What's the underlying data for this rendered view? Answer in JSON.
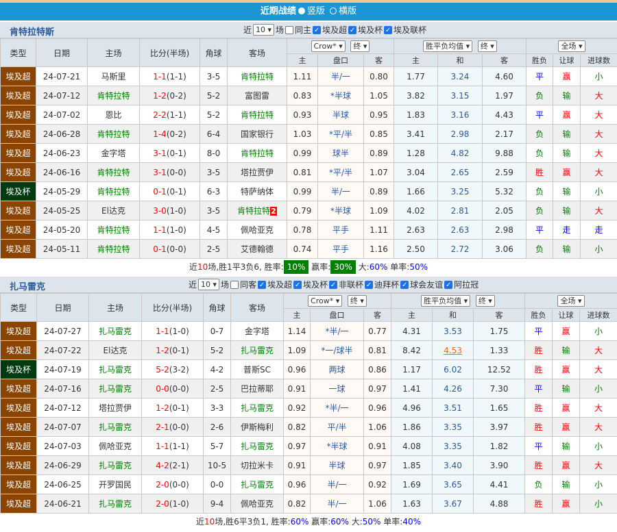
{
  "header": {
    "title": "近期战绩",
    "opt1": "竖版",
    "opt2": "横版"
  },
  "colors": {
    "header": "#1a96d4",
    "league": "#8b4500",
    "cup": "#003a10",
    "win": "#ff0000",
    "draw": "#0000ff",
    "loss": "#008000"
  },
  "columns": {
    "type": "类型",
    "date": "日期",
    "home": "主场",
    "score": "比分(半场)",
    "corner": "角球",
    "away": "客场",
    "h": "主",
    "line": "盘口",
    "a": "客",
    "h2": "主",
    "d": "和",
    "a2": "客",
    "res": "胜负",
    "hcp": "让球",
    "goals": "进球数"
  },
  "sections": [
    {
      "team": "肯特拉特斯",
      "near": "近",
      "count": "10",
      "unit": "场",
      "same": "同主",
      "filters": [
        "埃及超",
        "埃及杯",
        "埃及联杯"
      ],
      "company": "Crow*",
      "company_type": "终",
      "avg": "胜平负均值",
      "avg_type": "终",
      "scope": "全场",
      "rows": [
        [
          "埃及超",
          "24-07-21",
          "马斯里",
          "1-1",
          "(1-1)",
          "3-5",
          "肯特拉特",
          "1.11",
          "半/一",
          "0.80",
          "1.77",
          "3.24",
          "4.60",
          "平",
          "赢",
          "小",
          "a",
          ""
        ],
        [
          "埃及超",
          "24-07-12",
          "肯特拉特",
          "1-2",
          "(0-2)",
          "5-2",
          "富图雷",
          "0.83",
          "*半球",
          "1.05",
          "3.82",
          "3.15",
          "1.97",
          "负",
          "输",
          "大",
          "h",
          ""
        ],
        [
          "埃及超",
          "24-07-02",
          "恩比",
          "2-2",
          "(1-1)",
          "5-2",
          "肯特拉特",
          "0.93",
          "半球",
          "0.95",
          "1.83",
          "3.16",
          "4.43",
          "平",
          "赢",
          "大",
          "a",
          ""
        ],
        [
          "埃及超",
          "24-06-28",
          "肯特拉特",
          "1-4",
          "(0-2)",
          "6-4",
          "国家银行",
          "1.03",
          "*平/半",
          "0.85",
          "3.41",
          "2.98",
          "2.17",
          "负",
          "输",
          "大",
          "h",
          ""
        ],
        [
          "埃及超",
          "24-06-23",
          "金字塔",
          "3-1",
          "(0-1)",
          "8-0",
          "肯特拉特",
          "0.99",
          "球半",
          "0.89",
          "1.28",
          "4.82",
          "9.88",
          "负",
          "输",
          "大",
          "a",
          ""
        ],
        [
          "埃及超",
          "24-06-16",
          "肯特拉特",
          "3-1",
          "(0-0)",
          "3-5",
          "塔拉贾伊",
          "0.81",
          "*平/半",
          "1.07",
          "3.04",
          "2.65",
          "2.59",
          "胜",
          "赢",
          "大",
          "h",
          ""
        ],
        [
          "埃及杯",
          "24-05-29",
          "肯特拉特",
          "0-1",
          "(0-1)",
          "6-3",
          "特萨纳体",
          "0.99",
          "半/一",
          "0.89",
          "1.66",
          "3.25",
          "5.32",
          "负",
          "输",
          "小",
          "h",
          ""
        ],
        [
          "埃及超",
          "24-05-25",
          "El达克",
          "3-0",
          "(1-0)",
          "3-5",
          "肯特拉特",
          "0.79",
          "*半球",
          "1.09",
          "4.02",
          "2.81",
          "2.05",
          "负",
          "输",
          "大",
          "a",
          "2"
        ],
        [
          "埃及超",
          "24-05-20",
          "肯特拉特",
          "1-1",
          "(1-0)",
          "4-5",
          "佩哈亚克",
          "0.78",
          "平手",
          "1.11",
          "2.63",
          "2.63",
          "2.98",
          "平",
          "走",
          "走",
          "h",
          ""
        ],
        [
          "埃及超",
          "24-05-11",
          "肯特拉特",
          "0-1",
          "(0-0)",
          "2-5",
          "艾德翰德",
          "0.74",
          "平手",
          "1.16",
          "2.50",
          "2.72",
          "3.06",
          "负",
          "输",
          "小",
          "h",
          ""
        ]
      ],
      "summary": {
        "p1": "近",
        "n": "10",
        "p2": "场,胜1平3负6, 胜率:",
        "win": "10%",
        "p3": " 赢率:",
        "hcp": "30%",
        "p4": " 大:",
        "big": "60%",
        "p5": " 单率:",
        "odd": "50%"
      }
    },
    {
      "team": "扎马雷克",
      "near": "近",
      "count": "10",
      "unit": "场",
      "same": "同客",
      "filters": [
        "埃及超",
        "埃及杯",
        "非联杯",
        "迪拜杯",
        "球会友谊",
        "阿拉冠"
      ],
      "company": "Crow*",
      "company_type": "终",
      "avg": "胜平负均值",
      "avg_type": "终",
      "scope": "全场",
      "rows": [
        [
          "埃及超",
          "24-07-27",
          "扎马雷克",
          "1-1",
          "(1-0)",
          "0-7",
          "金字塔",
          "1.14",
          "*半/一",
          "0.77",
          "4.31",
          "3.53",
          "1.75",
          "平",
          "赢",
          "小",
          "h",
          ""
        ],
        [
          "埃及超",
          "24-07-22",
          "El达克",
          "1-2",
          "(0-1)",
          "5-2",
          "扎马雷克",
          "1.09",
          "*一/球半",
          "0.81",
          "8.42",
          "4.53",
          "1.33",
          "胜",
          "输",
          "大",
          "a",
          ""
        ],
        [
          "埃及杯",
          "24-07-19",
          "扎马雷克",
          "5-2",
          "(3-2)",
          "4-2",
          "普斯SC",
          "0.96",
          "两球",
          "0.86",
          "1.17",
          "6.02",
          "12.52",
          "胜",
          "赢",
          "大",
          "h",
          ""
        ],
        [
          "埃及超",
          "24-07-16",
          "扎马雷克",
          "0-0",
          "(0-0)",
          "2-5",
          "巴拉蒂耶",
          "0.91",
          "一球",
          "0.97",
          "1.41",
          "4.26",
          "7.30",
          "平",
          "输",
          "小",
          "h",
          ""
        ],
        [
          "埃及超",
          "24-07-12",
          "塔拉贾伊",
          "1-2",
          "(0-1)",
          "3-3",
          "扎马雷克",
          "0.92",
          "*半/一",
          "0.96",
          "4.96",
          "3.51",
          "1.65",
          "胜",
          "赢",
          "大",
          "a",
          ""
        ],
        [
          "埃及超",
          "24-07-07",
          "扎马雷克",
          "2-1",
          "(0-0)",
          "2-6",
          "伊斯梅利",
          "0.82",
          "平/半",
          "1.06",
          "1.86",
          "3.35",
          "3.97",
          "胜",
          "赢",
          "大",
          "h",
          ""
        ],
        [
          "埃及超",
          "24-07-03",
          "佩哈亚克",
          "1-1",
          "(1-1)",
          "5-7",
          "扎马雷克",
          "0.97",
          "*半球",
          "0.91",
          "4.08",
          "3.35",
          "1.82",
          "平",
          "输",
          "小",
          "a",
          ""
        ],
        [
          "埃及超",
          "24-06-29",
          "扎马雷克",
          "4-2",
          "(2-1)",
          "10-5",
          "切拉米卡",
          "0.91",
          "半球",
          "0.97",
          "1.85",
          "3.40",
          "3.90",
          "胜",
          "赢",
          "大",
          "h",
          ""
        ],
        [
          "埃及超",
          "24-06-25",
          "开罗国民",
          "2-0",
          "(0-0)",
          "0-0",
          "扎马雷克",
          "0.96",
          "半/一",
          "0.92",
          "1.69",
          "3.65",
          "4.41",
          "负",
          "输",
          "小",
          "a",
          ""
        ],
        [
          "埃及超",
          "24-06-21",
          "扎马雷克",
          "2-0",
          "(1-0)",
          "9-4",
          "佩哈亚克",
          "0.82",
          "半/一",
          "1.06",
          "1.63",
          "3.67",
          "4.88",
          "胜",
          "赢",
          "小",
          "h",
          ""
        ]
      ],
      "summary": {
        "p1": "近",
        "n": "10",
        "p2": "场,胜6平3负1, 胜率:",
        "win": "60%",
        "p3": " 赢率:",
        "hcp": "60%",
        "p4": " 大:",
        "big": "50%",
        "p5": " 单率:",
        "odd": "40%"
      }
    }
  ]
}
